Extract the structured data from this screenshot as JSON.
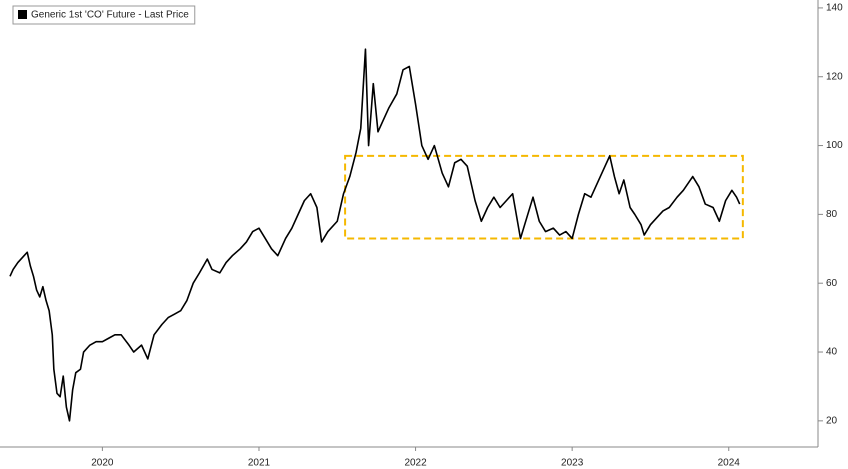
{
  "chart_data": {
    "type": "line",
    "series": [
      {
        "name": "Generic 1st 'CO' Future - Last Price",
        "color": "#000000",
        "x": [
          2019.91,
          2019.93,
          2019.96,
          2020.0,
          2020.02,
          2020.04,
          2020.06,
          2020.08,
          2020.1,
          2020.12,
          2020.14,
          2020.16,
          2020.18,
          2020.19,
          2020.21,
          2020.23,
          2020.25,
          2020.27,
          2020.29,
          2020.31,
          2020.33,
          2020.36,
          2020.38,
          2020.42,
          2020.46,
          2020.5,
          2020.54,
          2020.58,
          2020.62,
          2020.67,
          2020.7,
          2020.75,
          2020.79,
          2020.83,
          2020.88,
          2020.92,
          2020.96,
          2021.0,
          2021.04,
          2021.08,
          2021.12,
          2021.17,
          2021.2,
          2021.25,
          2021.29,
          2021.33,
          2021.38,
          2021.42,
          2021.46,
          2021.5,
          2021.54,
          2021.58,
          2021.62,
          2021.67,
          2021.71,
          2021.75,
          2021.79,
          2021.83,
          2021.87,
          2021.9,
          2021.94,
          2022.0,
          2022.04,
          2022.08,
          2022.12,
          2022.15,
          2022.18,
          2022.2,
          2022.23,
          2022.26,
          2022.29,
          2022.33,
          2022.38,
          2022.42,
          2022.46,
          2022.5,
          2022.54,
          2022.58,
          2022.62,
          2022.67,
          2022.71,
          2022.75,
          2022.79,
          2022.83,
          2022.88,
          2022.92,
          2022.96,
          2023.0,
          2023.04,
          2023.08,
          2023.12,
          2023.17,
          2023.21,
          2023.25,
          2023.29,
          2023.33,
          2023.38,
          2023.42,
          2023.46,
          2023.5,
          2023.54,
          2023.58,
          2023.62,
          2023.67,
          2023.71,
          2023.74,
          2023.77,
          2023.8,
          2023.83,
          2023.87,
          2023.9,
          2023.94,
          2023.96,
          2024.0,
          2024.04,
          2024.08,
          2024.12,
          2024.17,
          2024.21,
          2024.27,
          2024.31,
          2024.35,
          2024.4,
          2024.44,
          2024.48,
          2024.52,
          2024.55,
          2024.57
        ],
        "values": [
          62,
          64,
          66,
          68,
          69,
          65,
          62,
          58,
          56,
          59,
          55,
          52,
          45,
          35,
          28,
          27,
          33,
          24,
          20,
          29,
          34,
          35,
          40,
          42,
          43,
          43,
          44,
          45,
          45,
          42,
          40,
          42,
          38,
          45,
          48,
          50,
          51,
          52,
          55,
          60,
          63,
          67,
          64,
          63,
          66,
          68,
          70,
          72,
          75,
          76,
          73,
          70,
          68,
          73,
          76,
          80,
          84,
          86,
          82,
          72,
          75,
          78,
          86,
          91,
          98,
          105,
          128,
          100,
          118,
          104,
          107,
          111,
          115,
          122,
          123,
          112,
          100,
          96,
          100,
          92,
          88,
          95,
          96,
          94,
          84,
          78,
          82,
          85,
          82,
          84,
          86,
          73,
          79,
          85,
          78,
          75,
          76,
          74,
          75,
          73,
          80,
          86,
          85,
          90,
          94,
          97,
          91,
          86,
          90,
          82,
          80,
          77,
          74,
          77,
          79,
          81,
          82,
          85,
          87,
          91,
          88,
          83,
          82,
          78,
          84,
          87,
          85,
          83
        ]
      }
    ],
    "xlim": [
      2019.91,
      2025.07
    ],
    "xticks": [
      {
        "value": 2020.5,
        "label": "2020"
      },
      {
        "value": 2021.5,
        "label": "2021"
      },
      {
        "value": 2022.5,
        "label": "2022"
      },
      {
        "value": 2023.5,
        "label": "2023"
      },
      {
        "value": 2024.5,
        "label": "2024"
      }
    ],
    "ylim": [
      12.4,
      142.3
    ],
    "yticks": [
      20,
      40,
      60,
      80,
      100,
      120,
      140
    ],
    "legend": "top-left",
    "highlight_box": {
      "xlim": [
        2022.05,
        2024.59
      ],
      "ylim": [
        73,
        97
      ],
      "color": "#f5b800"
    }
  }
}
